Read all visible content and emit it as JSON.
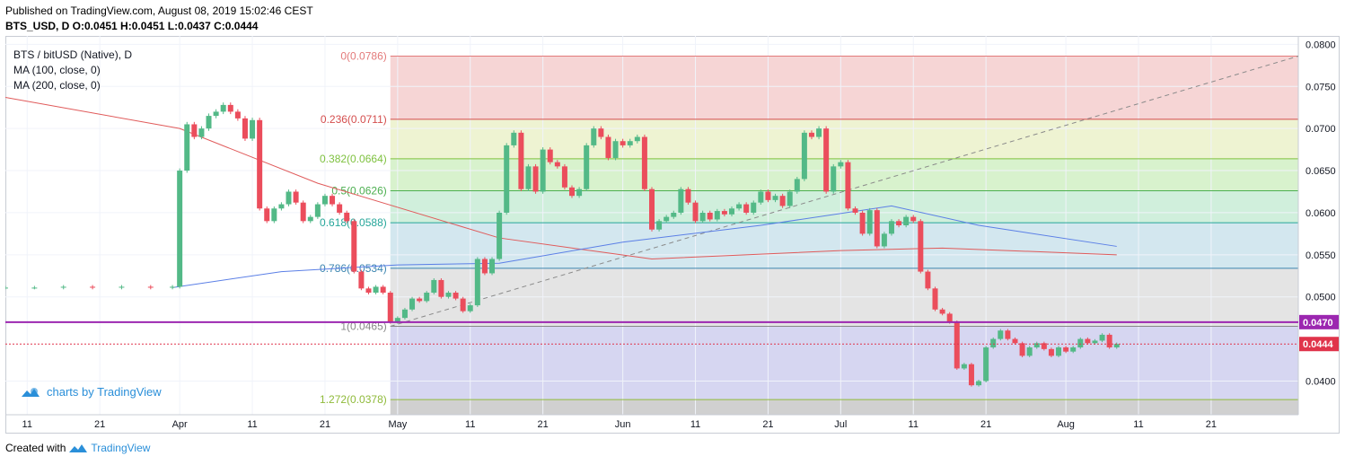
{
  "header": {
    "published": "Published on TradingView.com, August 08, 2019 15:02:46 CEST",
    "ohlc": "BTS_USD, D  O:0.0451 H:0.0451 L:0.0437 C:0.0444"
  },
  "legend": {
    "title": "BTS / bitUSD (Native), D",
    "ma100": "MA (100, close, 0)",
    "ma200": "MA (200, close, 0)"
  },
  "watermark": "charts by TradingView",
  "footer": {
    "created_with": "Created with",
    "brand": "TradingView"
  },
  "colors": {
    "up": "#53b987",
    "down": "#eb4d5c",
    "ma100": "#5b7fe6",
    "ma200": "#e05a5a",
    "hline": "#9c27b0",
    "price_tag": "#e0344b",
    "trend": "#8a8a8a"
  },
  "chart_data": {
    "type": "candlestick",
    "symbol": "BTS / bitUSD (Native)",
    "timeframe": "D",
    "y_axis": {
      "range": [
        0.036,
        0.081
      ],
      "ticks": [
        "0.0800",
        "0.0750",
        "0.0700",
        "0.0650",
        "0.0600",
        "0.0550",
        "0.0500",
        "0.0400"
      ]
    },
    "x_axis": {
      "range": [
        "2019-03-08",
        "2019-09-02"
      ],
      "ticks": [
        {
          "label": "11",
          "date": "2019-03-11"
        },
        {
          "label": "21",
          "date": "2019-03-21"
        },
        {
          "label": "Apr",
          "date": "2019-04-01"
        },
        {
          "label": "11",
          "date": "2019-04-11"
        },
        {
          "label": "21",
          "date": "2019-04-21"
        },
        {
          "label": "May",
          "date": "2019-05-01"
        },
        {
          "label": "11",
          "date": "2019-05-11"
        },
        {
          "label": "21",
          "date": "2019-05-21"
        },
        {
          "label": "Jun",
          "date": "2019-06-01"
        },
        {
          "label": "11",
          "date": "2019-06-11"
        },
        {
          "label": "21",
          "date": "2019-06-21"
        },
        {
          "label": "Jul",
          "date": "2019-07-01"
        },
        {
          "label": "11",
          "date": "2019-07-11"
        },
        {
          "label": "21",
          "date": "2019-07-21"
        },
        {
          "label": "Aug",
          "date": "2019-08-01"
        },
        {
          "label": "11",
          "date": "2019-08-11"
        },
        {
          "label": "21",
          "date": "2019-08-21"
        }
      ]
    },
    "closes": [
      {
        "d": "2019-03-08",
        "c": 0.0511
      },
      {
        "d": "2019-03-12",
        "c": 0.0511
      },
      {
        "d": "2019-03-16",
        "c": 0.0512
      },
      {
        "d": "2019-03-20",
        "c": 0.0511
      },
      {
        "d": "2019-03-24",
        "c": 0.0512
      },
      {
        "d": "2019-03-28",
        "c": 0.0511
      },
      {
        "d": "2019-03-31",
        "c": 0.0512
      },
      {
        "d": "2019-04-01",
        "c": 0.065
      },
      {
        "d": "2019-04-02",
        "c": 0.0705
      },
      {
        "d": "2019-04-03",
        "c": 0.069
      },
      {
        "d": "2019-04-04",
        "c": 0.07
      },
      {
        "d": "2019-04-05",
        "c": 0.0715
      },
      {
        "d": "2019-04-06",
        "c": 0.072
      },
      {
        "d": "2019-04-07",
        "c": 0.0728
      },
      {
        "d": "2019-04-08",
        "c": 0.072
      },
      {
        "d": "2019-04-09",
        "c": 0.0712
      },
      {
        "d": "2019-04-10",
        "c": 0.0688
      },
      {
        "d": "2019-04-11",
        "c": 0.071
      },
      {
        "d": "2019-04-12",
        "c": 0.0605
      },
      {
        "d": "2019-04-13",
        "c": 0.059
      },
      {
        "d": "2019-04-14",
        "c": 0.0605
      },
      {
        "d": "2019-04-15",
        "c": 0.061
      },
      {
        "d": "2019-04-16",
        "c": 0.0625
      },
      {
        "d": "2019-04-17",
        "c": 0.0612
      },
      {
        "d": "2019-04-18",
        "c": 0.059
      },
      {
        "d": "2019-04-19",
        "c": 0.0595
      },
      {
        "d": "2019-04-20",
        "c": 0.061
      },
      {
        "d": "2019-04-21",
        "c": 0.062
      },
      {
        "d": "2019-04-22",
        "c": 0.061
      },
      {
        "d": "2019-04-23",
        "c": 0.06
      },
      {
        "d": "2019-04-24",
        "c": 0.059
      },
      {
        "d": "2019-04-25",
        "c": 0.053
      },
      {
        "d": "2019-04-26",
        "c": 0.051
      },
      {
        "d": "2019-04-27",
        "c": 0.0505
      },
      {
        "d": "2019-04-28",
        "c": 0.0512
      },
      {
        "d": "2019-04-29",
        "c": 0.0505
      },
      {
        "d": "2019-04-30",
        "c": 0.047
      },
      {
        "d": "2019-05-01",
        "c": 0.0475
      },
      {
        "d": "2019-05-02",
        "c": 0.0485
      },
      {
        "d": "2019-05-03",
        "c": 0.0498
      },
      {
        "d": "2019-05-04",
        "c": 0.0495
      },
      {
        "d": "2019-05-05",
        "c": 0.0505
      },
      {
        "d": "2019-05-06",
        "c": 0.052
      },
      {
        "d": "2019-05-07",
        "c": 0.05
      },
      {
        "d": "2019-05-08",
        "c": 0.0505
      },
      {
        "d": "2019-05-09",
        "c": 0.0498
      },
      {
        "d": "2019-05-10",
        "c": 0.0483
      },
      {
        "d": "2019-05-11",
        "c": 0.049
      },
      {
        "d": "2019-05-12",
        "c": 0.0545
      },
      {
        "d": "2019-05-13",
        "c": 0.0528
      },
      {
        "d": "2019-05-14",
        "c": 0.0545
      },
      {
        "d": "2019-05-15",
        "c": 0.06
      },
      {
        "d": "2019-05-16",
        "c": 0.068
      },
      {
        "d": "2019-05-17",
        "c": 0.0695
      },
      {
        "d": "2019-05-18",
        "c": 0.0628
      },
      {
        "d": "2019-05-19",
        "c": 0.0655
      },
      {
        "d": "2019-05-20",
        "c": 0.0625
      },
      {
        "d": "2019-05-21",
        "c": 0.0675
      },
      {
        "d": "2019-05-22",
        "c": 0.066
      },
      {
        "d": "2019-05-23",
        "c": 0.0655
      },
      {
        "d": "2019-05-24",
        "c": 0.063
      },
      {
        "d": "2019-05-25",
        "c": 0.062
      },
      {
        "d": "2019-05-26",
        "c": 0.0628
      },
      {
        "d": "2019-05-27",
        "c": 0.068
      },
      {
        "d": "2019-05-28",
        "c": 0.07
      },
      {
        "d": "2019-05-29",
        "c": 0.069
      },
      {
        "d": "2019-05-30",
        "c": 0.0665
      },
      {
        "d": "2019-05-31",
        "c": 0.0685
      },
      {
        "d": "2019-06-01",
        "c": 0.068
      },
      {
        "d": "2019-06-02",
        "c": 0.0685
      },
      {
        "d": "2019-06-03",
        "c": 0.069
      },
      {
        "d": "2019-06-04",
        "c": 0.0628
      },
      {
        "d": "2019-06-05",
        "c": 0.058
      },
      {
        "d": "2019-06-06",
        "c": 0.059
      },
      {
        "d": "2019-06-07",
        "c": 0.0595
      },
      {
        "d": "2019-06-08",
        "c": 0.06
      },
      {
        "d": "2019-06-09",
        "c": 0.0628
      },
      {
        "d": "2019-06-10",
        "c": 0.0612
      },
      {
        "d": "2019-06-11",
        "c": 0.059
      },
      {
        "d": "2019-06-12",
        "c": 0.06
      },
      {
        "d": "2019-06-13",
        "c": 0.0592
      },
      {
        "d": "2019-06-14",
        "c": 0.0602
      },
      {
        "d": "2019-06-15",
        "c": 0.0598
      },
      {
        "d": "2019-06-16",
        "c": 0.0605
      },
      {
        "d": "2019-06-17",
        "c": 0.061
      },
      {
        "d": "2019-06-18",
        "c": 0.06
      },
      {
        "d": "2019-06-19",
        "c": 0.0612
      },
      {
        "d": "2019-06-20",
        "c": 0.0625
      },
      {
        "d": "2019-06-21",
        "c": 0.0615
      },
      {
        "d": "2019-06-22",
        "c": 0.062
      },
      {
        "d": "2019-06-23",
        "c": 0.0608
      },
      {
        "d": "2019-06-24",
        "c": 0.0625
      },
      {
        "d": "2019-06-25",
        "c": 0.064
      },
      {
        "d": "2019-06-26",
        "c": 0.0695
      },
      {
        "d": "2019-06-27",
        "c": 0.069
      },
      {
        "d": "2019-06-28",
        "c": 0.07
      },
      {
        "d": "2019-06-29",
        "c": 0.0625
      },
      {
        "d": "2019-06-30",
        "c": 0.0655
      },
      {
        "d": "2019-07-01",
        "c": 0.066
      },
      {
        "d": "2019-07-02",
        "c": 0.0605
      },
      {
        "d": "2019-07-03",
        "c": 0.06
      },
      {
        "d": "2019-07-04",
        "c": 0.0575
      },
      {
        "d": "2019-07-05",
        "c": 0.0603
      },
      {
        "d": "2019-07-06",
        "c": 0.056
      },
      {
        "d": "2019-07-07",
        "c": 0.0575
      },
      {
        "d": "2019-07-08",
        "c": 0.059
      },
      {
        "d": "2019-07-09",
        "c": 0.0585
      },
      {
        "d": "2019-07-10",
        "c": 0.0595
      },
      {
        "d": "2019-07-11",
        "c": 0.059
      },
      {
        "d": "2019-07-12",
        "c": 0.053
      },
      {
        "d": "2019-07-13",
        "c": 0.051
      },
      {
        "d": "2019-07-14",
        "c": 0.0485
      },
      {
        "d": "2019-07-15",
        "c": 0.048
      },
      {
        "d": "2019-07-16",
        "c": 0.047
      },
      {
        "d": "2019-07-17",
        "c": 0.0415
      },
      {
        "d": "2019-07-18",
        "c": 0.042
      },
      {
        "d": "2019-07-19",
        "c": 0.0395
      },
      {
        "d": "2019-07-20",
        "c": 0.04
      },
      {
        "d": "2019-07-21",
        "c": 0.044
      },
      {
        "d": "2019-07-22",
        "c": 0.045
      },
      {
        "d": "2019-07-23",
        "c": 0.046
      },
      {
        "d": "2019-07-24",
        "c": 0.045
      },
      {
        "d": "2019-07-25",
        "c": 0.0445
      },
      {
        "d": "2019-07-26",
        "c": 0.043
      },
      {
        "d": "2019-07-27",
        "c": 0.044
      },
      {
        "d": "2019-07-28",
        "c": 0.0445
      },
      {
        "d": "2019-07-29",
        "c": 0.0438
      },
      {
        "d": "2019-07-30",
        "c": 0.043
      },
      {
        "d": "2019-07-31",
        "c": 0.044
      },
      {
        "d": "2019-08-01",
        "c": 0.0435
      },
      {
        "d": "2019-08-02",
        "c": 0.044
      },
      {
        "d": "2019-08-03",
        "c": 0.045
      },
      {
        "d": "2019-08-04",
        "c": 0.0445
      },
      {
        "d": "2019-08-05",
        "c": 0.0448
      },
      {
        "d": "2019-08-06",
        "c": 0.0455
      },
      {
        "d": "2019-08-07",
        "c": 0.044
      },
      {
        "d": "2019-08-08",
        "c": 0.0444
      }
    ],
    "ma100": [
      {
        "d": "2019-03-31",
        "v": 0.0511
      },
      {
        "d": "2019-04-15",
        "v": 0.053
      },
      {
        "d": "2019-05-01",
        "v": 0.0538
      },
      {
        "d": "2019-05-15",
        "v": 0.054
      },
      {
        "d": "2019-06-01",
        "v": 0.0565
      },
      {
        "d": "2019-06-20",
        "v": 0.0585
      },
      {
        "d": "2019-07-08",
        "v": 0.0608
      },
      {
        "d": "2019-07-20",
        "v": 0.0585
      },
      {
        "d": "2019-08-08",
        "v": 0.056
      }
    ],
    "ma200": [
      {
        "d": "2019-03-08",
        "v": 0.0737
      },
      {
        "d": "2019-04-01",
        "v": 0.07
      },
      {
        "d": "2019-04-20",
        "v": 0.0635
      },
      {
        "d": "2019-05-15",
        "v": 0.057
      },
      {
        "d": "2019-06-05",
        "v": 0.0545
      },
      {
        "d": "2019-07-01",
        "v": 0.0555
      },
      {
        "d": "2019-07-15",
        "v": 0.0558
      },
      {
        "d": "2019-08-08",
        "v": 0.055
      }
    ],
    "fibonacci": {
      "from_date": "2019-04-30",
      "to_date": "2019-09-02",
      "levels": [
        {
          "label": "0(0.0786)",
          "value": 0.0786,
          "color": "#e37a7a",
          "fill": "#f6d5d5"
        },
        {
          "label": "0.236(0.0711)",
          "value": 0.0711,
          "color": "#d44d4d",
          "fill": "#eef3d2"
        },
        {
          "label": "0.382(0.0664)",
          "value": 0.0664,
          "color": "#7ec13f",
          "fill": "#d8f2cd"
        },
        {
          "label": "0.5(0.0626)",
          "value": 0.0626,
          "color": "#4caf50",
          "fill": "#d0efdc"
        },
        {
          "label": "0.618(0.0588)",
          "value": 0.0588,
          "color": "#26a69a",
          "fill": "#d3e7ef"
        },
        {
          "label": "0.786(0.0534)",
          "value": 0.0534,
          "color": "#3d86b0",
          "fill": "#e4e4e4"
        },
        {
          "label": "1(0.0465)",
          "value": 0.0465,
          "color": "#888888",
          "fill": "#d6d6f1"
        },
        {
          "label": "1.272(0.0378)",
          "value": 0.0378,
          "color": "#8fba3a",
          "fill": null
        }
      ],
      "bottom_fill": "#d0d0d0"
    },
    "trendline": {
      "from": {
        "d": "2019-04-30",
        "v": 0.0465
      },
      "to": {
        "d": "2019-09-02",
        "v": 0.0786
      }
    },
    "horizontal_line": {
      "value": 0.047,
      "label": "0.0470"
    },
    "last_price": {
      "value": 0.0444,
      "label": "0.0444"
    }
  }
}
